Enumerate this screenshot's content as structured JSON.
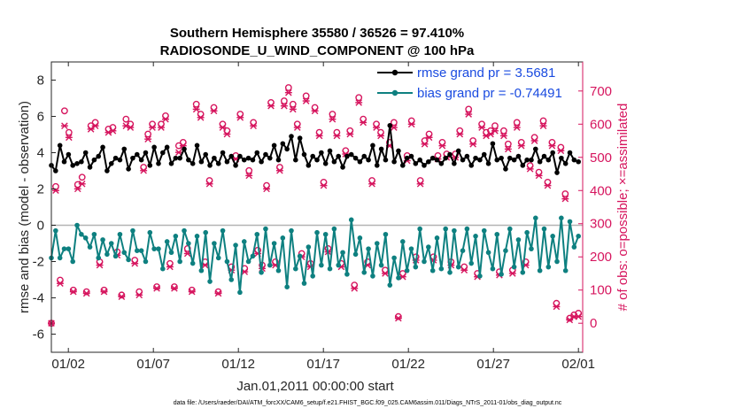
{
  "chart_data": {
    "type": "line",
    "title": "Southern Hemisphere 35580 / 36526 = 97.410%",
    "subtitle": "RADIOSONDE_U_WIND_COMPONENT @ 100 hPa",
    "xlabel": "Jan.01,2011 00:00:00 start",
    "ylabel": "rmse and bias (model - observation)",
    "ylabel_right": "# of obs: o=possible; ×=assimilated",
    "footer": "data file: /Users/raeder/DAI/ATM_forcXX/CAM6_setup/f.e21.FHIST_BGC.f09_025.CAM6assim.011/Diags_NTrS_2011-01/obs_diag_output.nc",
    "x_tick_labels": [
      "01/02",
      "01/07",
      "01/12",
      "01/17",
      "01/22",
      "01/27",
      "02/01"
    ],
    "x_tick_days": [
      1,
      6,
      11,
      16,
      21,
      26,
      31
    ],
    "xlim": [
      0,
      31.25
    ],
    "ylim": [
      -7,
      9
    ],
    "yticks": [
      -6,
      -4,
      -2,
      0,
      2,
      4,
      6,
      8
    ],
    "ylim_right": [
      -87.5,
      787.5
    ],
    "yticks_right": [
      0,
      100,
      200,
      300,
      400,
      500,
      600,
      700
    ],
    "colors": {
      "rmse": "#000000",
      "bias": "#0e8080",
      "obs": "#d6155e",
      "zero_line": "#b5b5b5",
      "legend_text": "#1a4be0"
    },
    "legend": [
      {
        "name": "rmse grand pr = 3.5681",
        "series": "rmse"
      },
      {
        "name": "bias grand pr = -0.74491",
        "series": "bias"
      }
    ],
    "series": [
      {
        "name": "rmse",
        "values": [
          3.3,
          3.0,
          4.4,
          3.5,
          3.9,
          3.3,
          3.4,
          3.5,
          4.0,
          3.2,
          3.6,
          3.8,
          4.3,
          3.0,
          3.4,
          3.7,
          3.6,
          4.2,
          3.1,
          3.7,
          3.9,
          3.6,
          4.0,
          3.3,
          4.3,
          3.4,
          4.0,
          4.3,
          3.4,
          3.7,
          3.7,
          4.2,
          3.6,
          3.4,
          4.4,
          3.5,
          3.9,
          3.3,
          3.7,
          3.4,
          4.0,
          3.5,
          3.8,
          3.3,
          3.8,
          3.6,
          3.7,
          3.6,
          4.0,
          3.5,
          3.9,
          3.7,
          4.4,
          3.6,
          4.5,
          4.2,
          4.9,
          3.6,
          4.8,
          3.9,
          3.3,
          3.8,
          3.6,
          4.0,
          3.4,
          4.1,
          3.5,
          3.8,
          3.2,
          3.8,
          3.9,
          3.7,
          3.5,
          3.8,
          3.6,
          4.4,
          3.3,
          4.2,
          3.6,
          5.5,
          3.5,
          4.1,
          3.3,
          3.7,
          3.8,
          3.4,
          3.6,
          3.3,
          3.5,
          3.7,
          3.6,
          3.4,
          3.7,
          3.9,
          3.4,
          4.1,
          3.6,
          3.8,
          3.3,
          3.7,
          3.6,
          3.9,
          3.4,
          4.5,
          3.6,
          3.7,
          3.1,
          3.7,
          3.6,
          3.8,
          3.3,
          3.6,
          3.6,
          4.2,
          3.5,
          3.8,
          3.6,
          4.0,
          2.9,
          3.7,
          3.4,
          4.0,
          3.6,
          3.5
        ]
      },
      {
        "name": "bias",
        "values": [
          -1.8,
          -0.3,
          -1.8,
          -1.3,
          -1.3,
          -2.0,
          0.0,
          -0.5,
          -0.7,
          -1.2,
          -0.5,
          -1.8,
          -0.8,
          -1.6,
          -1.0,
          -1.7,
          -0.5,
          -1.5,
          -1.9,
          -0.3,
          -1.4,
          -1.4,
          -2.0,
          -0.4,
          -1.3,
          -1.3,
          -2.4,
          -0.9,
          -1.5,
          -0.6,
          -2.0,
          -0.3,
          -1.0,
          -2.1,
          -0.6,
          -2.5,
          -0.4,
          -3.1,
          -1.0,
          -1.8,
          -0.3,
          -2.0,
          -3.0,
          -1.1,
          -3.7,
          -0.9,
          -2.0,
          -1.7,
          -0.5,
          -2.6,
          -0.2,
          -2.2,
          -1.0,
          -2.5,
          -0.7,
          -3.4,
          -0.3,
          -2.4,
          -1.7,
          -3.2,
          -1.2,
          -2.8,
          -0.4,
          -2.2,
          -0.5,
          -2.4,
          -0.2,
          -2.2,
          -1.5,
          -2.7,
          0.3,
          -1.6,
          -0.7,
          -2.6,
          -1.3,
          -2.8,
          -1.0,
          -2.2,
          -0.5,
          -3.3,
          -1.8,
          -2.9,
          -0.9,
          -2.5,
          -1.3,
          -2.3,
          -0.2,
          -2.0,
          -1.2,
          -2.5,
          -0.7,
          -2.4,
          -0.2,
          -2.6,
          -0.3,
          -2.3,
          -1.4,
          -0.2,
          -2.1,
          -0.6,
          -2.8,
          -0.3,
          -1.5,
          -2.4,
          -0.5,
          -2.7,
          -1.4,
          -0.2,
          -2.3,
          -0.8,
          -2.6,
          -0.4,
          -1.3,
          0.4,
          -2.5,
          -0.2,
          -2.3,
          -0.6,
          -2.0,
          0.4,
          -2.5,
          0.2,
          -1.2,
          -0.6
        ]
      },
      {
        "name": "obs possible (o)",
        "values": [
          0,
          412,
          130,
          640,
          575,
          100,
          418,
          440,
          95,
          595,
          605,
          185,
          100,
          585,
          590,
          215,
          85,
          615,
          600,
          190,
          95,
          470,
          570,
          600,
          110,
          600,
          625,
          180,
          110,
          535,
          545,
          225,
          100,
          660,
          630,
          185,
          430,
          650,
          95,
          600,
          580,
          170,
          505,
          630,
          165,
          460,
          605,
          220,
          175,
          415,
          665,
          185,
          470,
          670,
          710,
          660,
          600,
          210,
          685,
          180,
          650,
          575,
          425,
          225,
          630,
          575,
          180,
          520,
          580,
          115,
          680,
          615,
          185,
          430,
          600,
          575,
          160,
          545,
          605,
          20,
          150,
          505,
          610,
          200,
          430,
          550,
          570,
          200,
          505,
          545,
          510,
          185,
          510,
          580,
          170,
          645,
          550,
          150,
          600,
          575,
          580,
          595,
          155,
          580,
          540,
          160,
          605,
          545,
          185,
          475,
          560,
          455,
          610,
          425,
          545,
          60,
          530,
          390,
          15,
          25,
          30
        ]
      },
      {
        "name": "obs assimilated (×)",
        "values": [
          0,
          400,
          120,
          595,
          560,
          95,
          405,
          420,
          90,
          585,
          595,
          175,
          95,
          575,
          580,
          205,
          80,
          595,
          590,
          180,
          85,
          460,
          555,
          590,
          105,
          590,
          615,
          170,
          105,
          515,
          535,
          210,
          95,
          645,
          620,
          175,
          420,
          640,
          90,
          590,
          570,
          160,
          495,
          620,
          155,
          445,
          595,
          210,
          165,
          405,
          655,
          175,
          460,
          655,
          695,
          645,
          590,
          200,
          670,
          170,
          640,
          565,
          415,
          215,
          615,
          565,
          170,
          510,
          570,
          105,
          665,
          605,
          175,
          420,
          590,
          565,
          150,
          535,
          590,
          15,
          140,
          490,
          600,
          190,
          420,
          540,
          560,
          190,
          495,
          535,
          500,
          175,
          500,
          570,
          160,
          630,
          540,
          140,
          590,
          565,
          570,
          580,
          145,
          565,
          525,
          150,
          590,
          535,
          175,
          465,
          550,
          445,
          595,
          415,
          535,
          50,
          520,
          375,
          10,
          20,
          20
        ]
      }
    ]
  }
}
